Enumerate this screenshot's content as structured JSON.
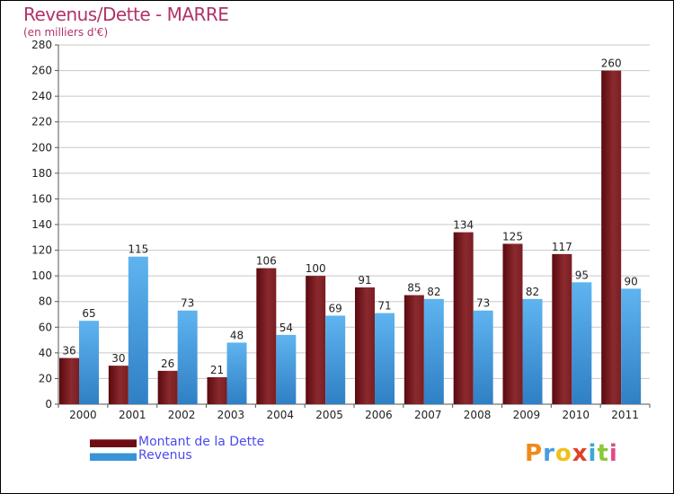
{
  "header": {
    "title": "Revenus/Dette - MARRE",
    "subtitle": "(en milliers d'€)"
  },
  "legend": {
    "debt_label": "Montant de la Dette",
    "revenue_label": "Revenus"
  },
  "logo": {
    "text": "Proxiti"
  },
  "colors": {
    "debt": "#7a1a1e",
    "revenue": "#4aa3e6",
    "title": "#b0336a",
    "legend_text": "#4a4af0"
  },
  "chart_data": {
    "type": "bar",
    "title": "Revenus/Dette - MARRE",
    "subtitle": "(en milliers d'€)",
    "xlabel": "",
    "ylabel": "",
    "ylim": [
      0,
      280
    ],
    "yticks": [
      0,
      20,
      40,
      60,
      80,
      100,
      120,
      140,
      160,
      180,
      200,
      220,
      240,
      260,
      280
    ],
    "grid": true,
    "legend_position": "bottom-left",
    "categories": [
      "2000",
      "2001",
      "2002",
      "2003",
      "2004",
      "2005",
      "2006",
      "2007",
      "2008",
      "2009",
      "2010",
      "2011"
    ],
    "series": [
      {
        "name": "Montant de la Dette",
        "values": [
          36,
          30,
          26,
          21,
          106,
          100,
          91,
          85,
          134,
          125,
          117,
          260
        ]
      },
      {
        "name": "Revenus",
        "values": [
          65,
          115,
          73,
          48,
          54,
          69,
          71,
          82,
          73,
          82,
          95,
          90
        ]
      }
    ]
  }
}
